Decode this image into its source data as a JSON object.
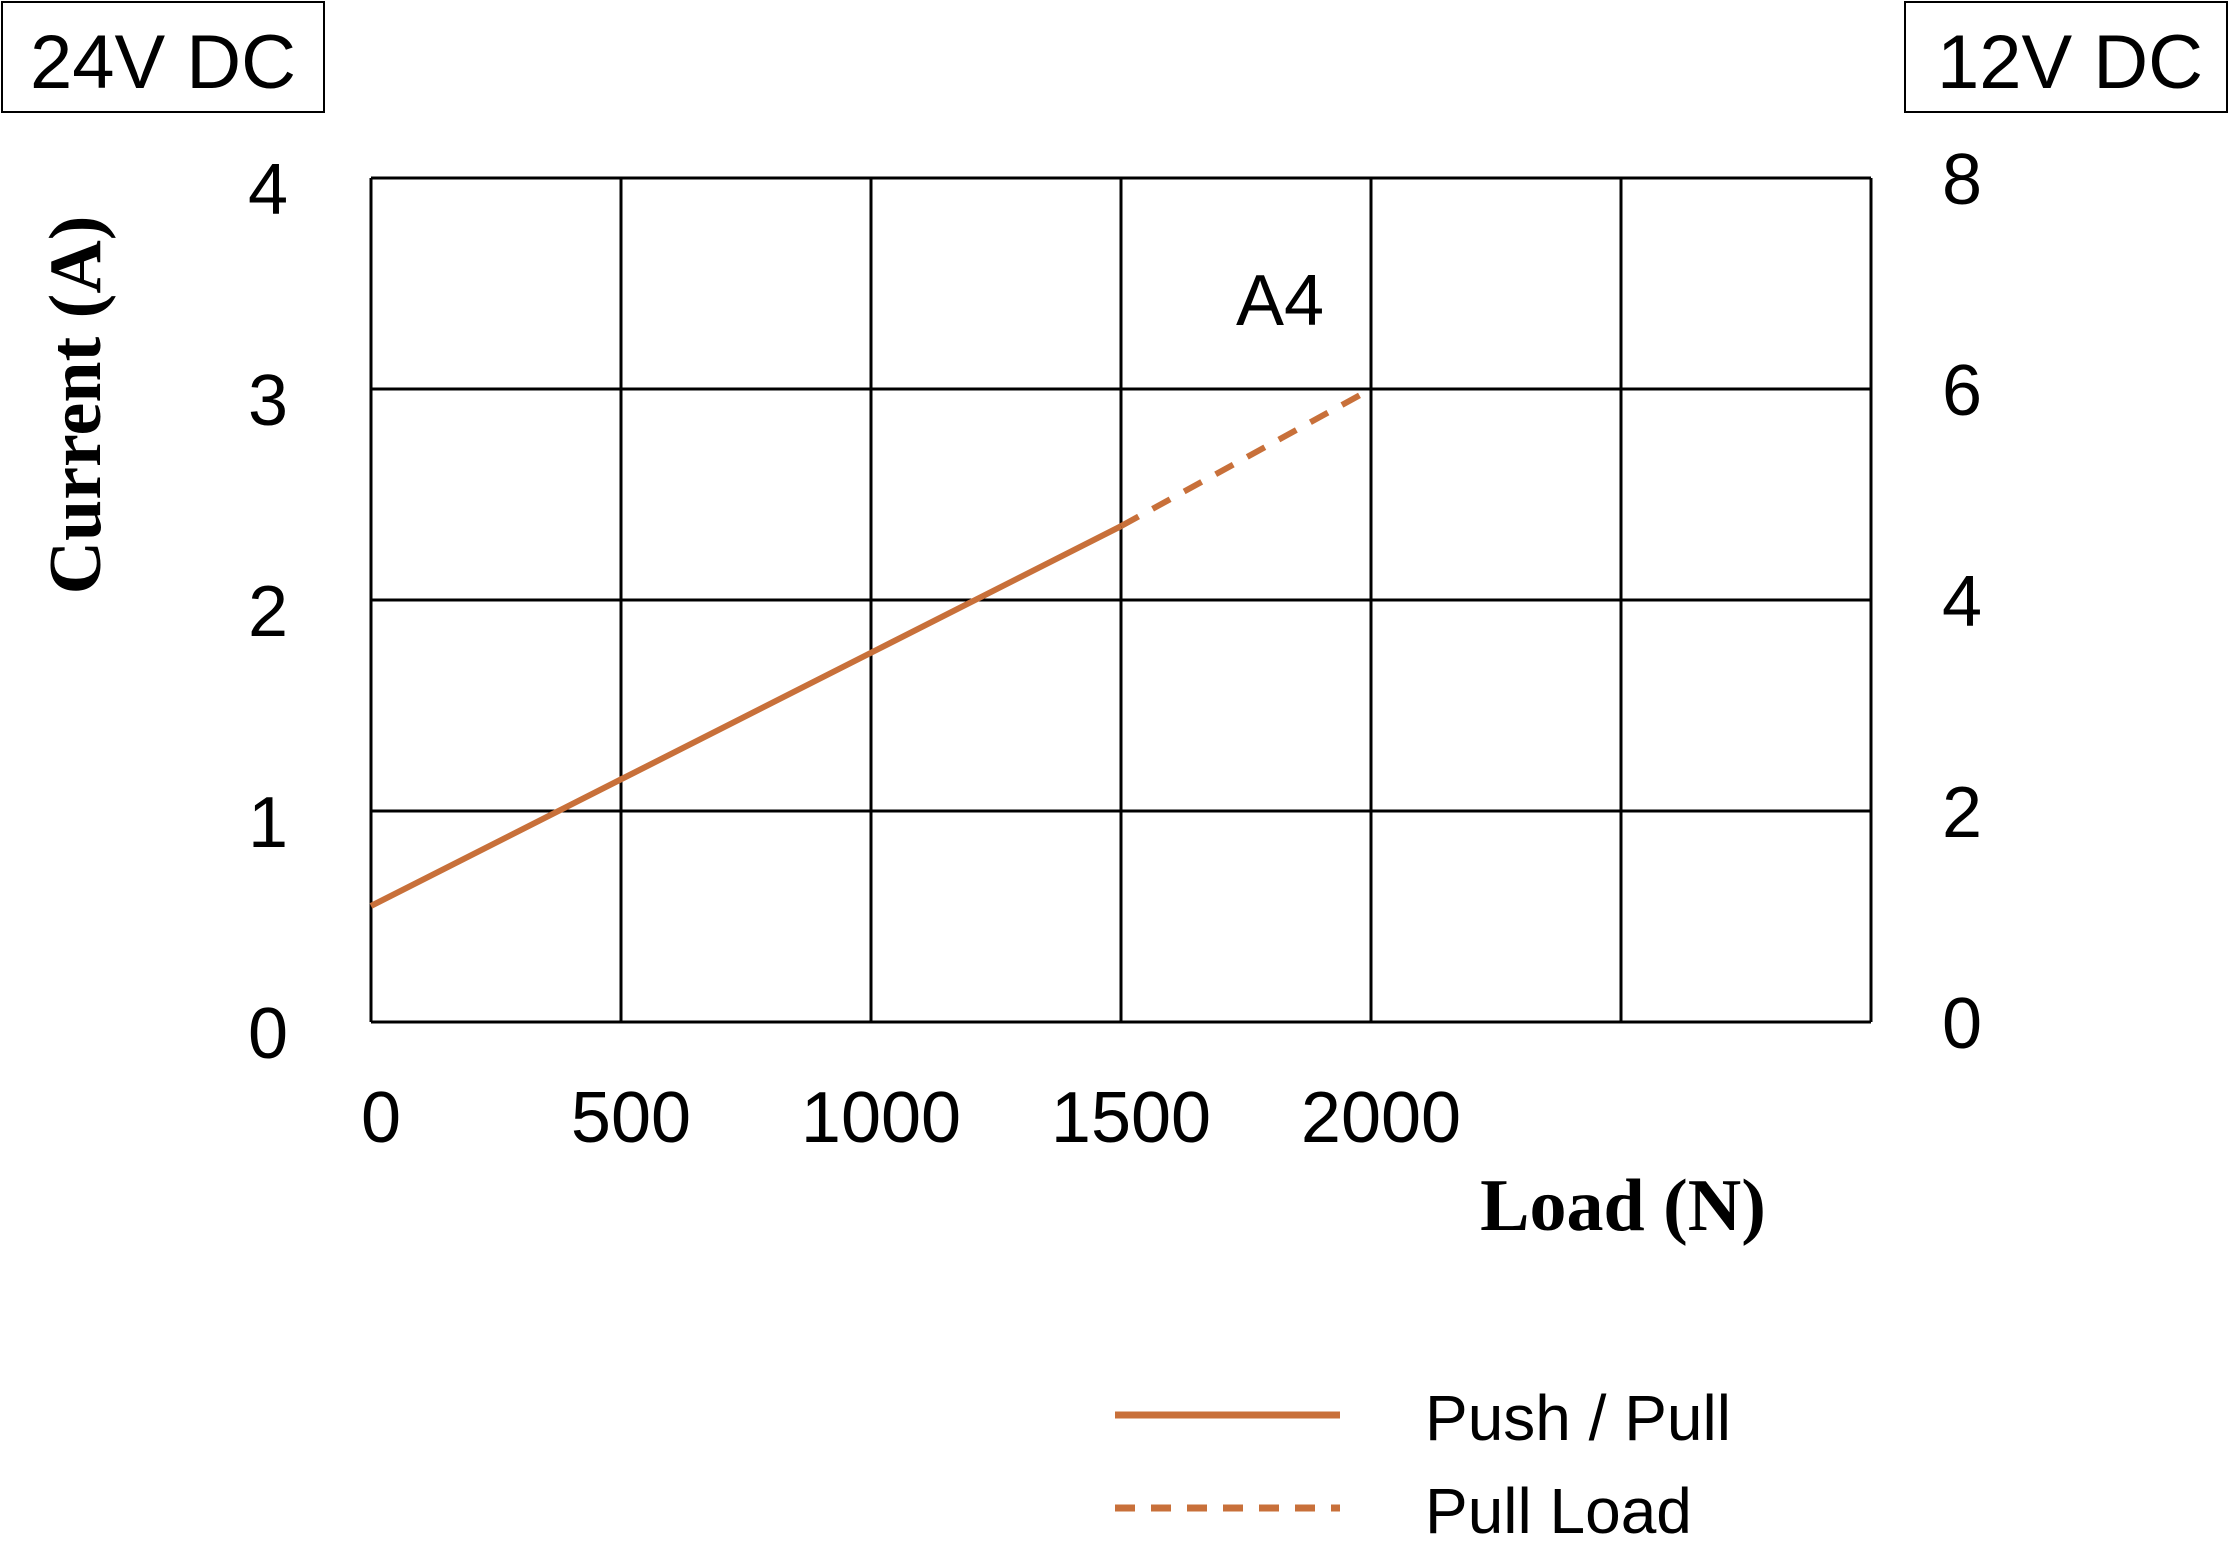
{
  "chart_data": {
    "type": "line",
    "title": "",
    "voltage_left": "24V DC",
    "voltage_right": "12V DC",
    "ylabel": "Current (A)",
    "xlabel": "Load (N)",
    "xlim": [
      0,
      3000
    ],
    "ylim_left": [
      0,
      4
    ],
    "ylim_right": [
      0,
      8
    ],
    "x_ticks": [
      "0",
      "500",
      "1000",
      "1500",
      "2000"
    ],
    "y_ticks_left": [
      "0",
      "1",
      "2",
      "3",
      "4"
    ],
    "y_ticks_right": [
      "0",
      "2",
      "4",
      "6",
      "8"
    ],
    "grid": true,
    "annotation": "A4",
    "series": [
      {
        "name": "Push / Pull",
        "style": "solid",
        "color": "#c8703a",
        "x": [
          0,
          500,
          1000,
          1500
        ],
        "y": [
          0.55,
          1.15,
          1.75,
          2.35
        ]
      },
      {
        "name": "Pull Load",
        "style": "dashed",
        "color": "#c8703a",
        "x": [
          1500,
          2000
        ],
        "y": [
          2.35,
          3.0
        ]
      }
    ],
    "legend_position": "bottom-right"
  }
}
